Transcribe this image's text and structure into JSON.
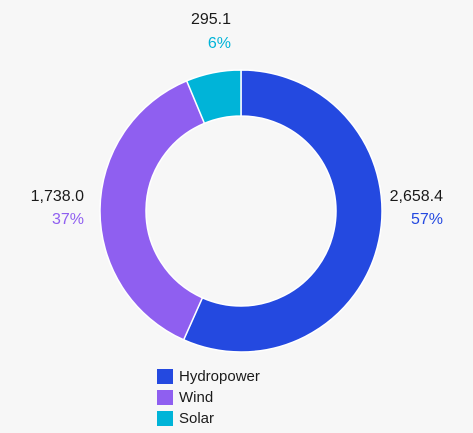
{
  "chart_data": {
    "type": "donut",
    "categories": [
      "Hydropower",
      "Wind",
      "Solar"
    ],
    "values": [
      2658.4,
      1738.0,
      295.1
    ],
    "value_labels": [
      "2,658.4",
      "1,738.0",
      "295.1"
    ],
    "percent_labels": [
      "57%",
      "37%",
      "6%"
    ],
    "colors": [
      "#2449e0",
      "#8f5ff0",
      "#00b4d8"
    ]
  }
}
